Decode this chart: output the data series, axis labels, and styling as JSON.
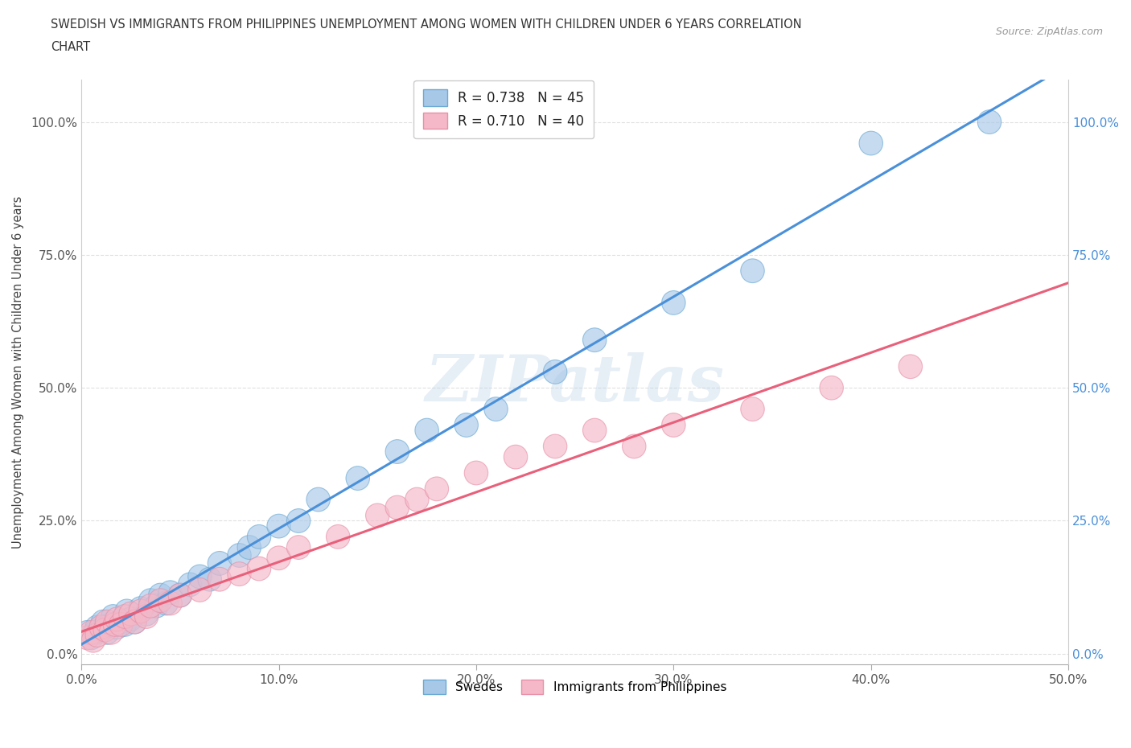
{
  "title_line1": "SWEDISH VS IMMIGRANTS FROM PHILIPPINES UNEMPLOYMENT AMONG WOMEN WITH CHILDREN UNDER 6 YEARS CORRELATION",
  "title_line2": "CHART",
  "source": "Source: ZipAtlas.com",
  "ylabel": "Unemployment Among Women with Children Under 6 years",
  "xlim": [
    0.0,
    0.5
  ],
  "ylim": [
    -0.02,
    1.08
  ],
  "xtick_labels": [
    "0.0%",
    "10.0%",
    "20.0%",
    "30.0%",
    "40.0%",
    "50.0%"
  ],
  "xtick_values": [
    0.0,
    0.1,
    0.2,
    0.3,
    0.4,
    0.5
  ],
  "ytick_labels": [
    "0.0%",
    "25.0%",
    "50.0%",
    "75.0%",
    "100.0%"
  ],
  "ytick_values": [
    0.0,
    0.25,
    0.5,
    0.75,
    1.0
  ],
  "swedish_color": "#a8c8e8",
  "philippines_color": "#f4b8c8",
  "swedish_line_color": "#4a90d9",
  "philippines_line_color": "#e8607a",
  "swedish_edge_color": "#6aaad4",
  "philippines_edge_color": "#e890a8",
  "R_swedish": 0.738,
  "N_swedish": 45,
  "R_philippines": 0.71,
  "N_philippines": 40,
  "watermark": "ZIPatlas",
  "background_color": "#ffffff",
  "grid_color": "#e0e0e0",
  "swedish_x": [
    0.003,
    0.005,
    0.007,
    0.008,
    0.01,
    0.011,
    0.012,
    0.013,
    0.015,
    0.016,
    0.018,
    0.02,
    0.022,
    0.023,
    0.025,
    0.027,
    0.03,
    0.033,
    0.035,
    0.038,
    0.04,
    0.043,
    0.045,
    0.05,
    0.055,
    0.06,
    0.065,
    0.07,
    0.08,
    0.085,
    0.09,
    0.1,
    0.11,
    0.12,
    0.14,
    0.16,
    0.175,
    0.195,
    0.21,
    0.24,
    0.26,
    0.3,
    0.34,
    0.4,
    0.46
  ],
  "swedish_y": [
    0.04,
    0.03,
    0.04,
    0.05,
    0.045,
    0.06,
    0.05,
    0.04,
    0.055,
    0.07,
    0.05,
    0.06,
    0.055,
    0.08,
    0.065,
    0.06,
    0.085,
    0.075,
    0.1,
    0.09,
    0.11,
    0.095,
    0.115,
    0.11,
    0.13,
    0.145,
    0.14,
    0.17,
    0.185,
    0.2,
    0.22,
    0.24,
    0.25,
    0.29,
    0.33,
    0.38,
    0.42,
    0.43,
    0.46,
    0.53,
    0.59,
    0.66,
    0.72,
    0.96,
    1.0
  ],
  "philippines_x": [
    0.003,
    0.005,
    0.006,
    0.008,
    0.01,
    0.012,
    0.013,
    0.015,
    0.017,
    0.018,
    0.02,
    0.022,
    0.025,
    0.027,
    0.03,
    0.033,
    0.035,
    0.04,
    0.045,
    0.05,
    0.06,
    0.07,
    0.08,
    0.09,
    0.1,
    0.11,
    0.13,
    0.15,
    0.16,
    0.17,
    0.18,
    0.2,
    0.22,
    0.24,
    0.26,
    0.28,
    0.3,
    0.34,
    0.38,
    0.42
  ],
  "philippines_y": [
    0.03,
    0.04,
    0.025,
    0.035,
    0.05,
    0.045,
    0.06,
    0.04,
    0.055,
    0.065,
    0.055,
    0.07,
    0.075,
    0.06,
    0.08,
    0.07,
    0.09,
    0.1,
    0.095,
    0.11,
    0.12,
    0.14,
    0.15,
    0.16,
    0.18,
    0.2,
    0.22,
    0.26,
    0.275,
    0.29,
    0.31,
    0.34,
    0.37,
    0.39,
    0.42,
    0.39,
    0.43,
    0.46,
    0.5,
    0.54
  ]
}
